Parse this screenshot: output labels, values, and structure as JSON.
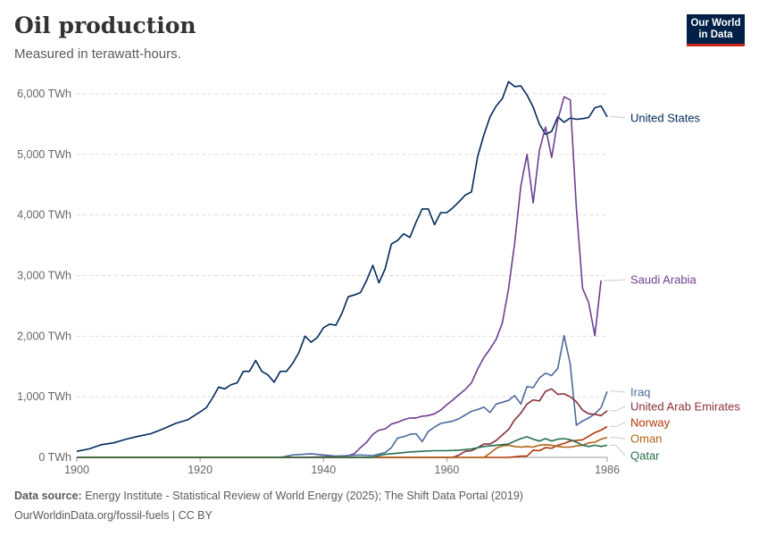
{
  "header": {
    "title": "Oil production",
    "subtitle": "Measured in terawatt-hours.",
    "logo_line1": "Our World",
    "logo_line2": "in Data"
  },
  "footer": {
    "source_label": "Data source:",
    "source_text": "Energy Institute - Statistical Review of World Energy (2025); The Shift Data Portal (2019)",
    "url_text": "OurWorldinData.org/fossil-fuels | CC BY"
  },
  "chart_data": {
    "type": "line",
    "title": "Oil production",
    "subtitle": "Measured in terawatt-hours.",
    "xlabel": "",
    "ylabel": "",
    "xlim": [
      1900,
      1986
    ],
    "ylim": [
      0,
      6000
    ],
    "y_ticks": [
      0,
      1000,
      2000,
      3000,
      4000,
      5000,
      6000
    ],
    "y_tick_labels": [
      "0 TWh",
      "1,000 TWh",
      "2,000 TWh",
      "3,000 TWh",
      "4,000 TWh",
      "5,000 TWh",
      "6,000 TWh"
    ],
    "x_ticks": [
      1900,
      1920,
      1940,
      1960,
      1986
    ],
    "x_tick_labels": [
      "1900",
      "1920",
      "1940",
      "1960",
      "1986"
    ],
    "grid": "horizontal dashed",
    "legend": "labels at right end of lines",
    "series": [
      {
        "name": "United States",
        "color": "#00295b",
        "points": [
          [
            1900,
            100
          ],
          [
            1902,
            140
          ],
          [
            1904,
            210
          ],
          [
            1906,
            240
          ],
          [
            1908,
            300
          ],
          [
            1910,
            350
          ],
          [
            1912,
            390
          ],
          [
            1914,
            470
          ],
          [
            1916,
            560
          ],
          [
            1918,
            620
          ],
          [
            1920,
            750
          ],
          [
            1921,
            820
          ],
          [
            1922,
            980
          ],
          [
            1923,
            1160
          ],
          [
            1924,
            1130
          ],
          [
            1925,
            1200
          ],
          [
            1926,
            1230
          ],
          [
            1927,
            1420
          ],
          [
            1928,
            1420
          ],
          [
            1929,
            1600
          ],
          [
            1930,
            1420
          ],
          [
            1931,
            1360
          ],
          [
            1932,
            1240
          ],
          [
            1933,
            1420
          ],
          [
            1934,
            1420
          ],
          [
            1935,
            1550
          ],
          [
            1936,
            1730
          ],
          [
            1937,
            2000
          ],
          [
            1938,
            1900
          ],
          [
            1939,
            1980
          ],
          [
            1940,
            2140
          ],
          [
            1941,
            2200
          ],
          [
            1942,
            2180
          ],
          [
            1943,
            2380
          ],
          [
            1944,
            2650
          ],
          [
            1945,
            2680
          ],
          [
            1946,
            2720
          ],
          [
            1947,
            2920
          ],
          [
            1948,
            3170
          ],
          [
            1949,
            2880
          ],
          [
            1950,
            3110
          ],
          [
            1951,
            3520
          ],
          [
            1952,
            3580
          ],
          [
            1953,
            3690
          ],
          [
            1954,
            3630
          ],
          [
            1955,
            3880
          ],
          [
            1956,
            4100
          ],
          [
            1957,
            4100
          ],
          [
            1958,
            3840
          ],
          [
            1959,
            4040
          ],
          [
            1960,
            4040
          ],
          [
            1961,
            4120
          ],
          [
            1962,
            4220
          ],
          [
            1963,
            4330
          ],
          [
            1964,
            4380
          ],
          [
            1965,
            4970
          ],
          [
            1966,
            5320
          ],
          [
            1967,
            5620
          ],
          [
            1968,
            5800
          ],
          [
            1969,
            5920
          ],
          [
            1970,
            6200
          ],
          [
            1971,
            6120
          ],
          [
            1972,
            6130
          ],
          [
            1973,
            5980
          ],
          [
            1974,
            5780
          ],
          [
            1975,
            5500
          ],
          [
            1976,
            5330
          ],
          [
            1977,
            5380
          ],
          [
            1978,
            5620
          ],
          [
            1979,
            5530
          ],
          [
            1980,
            5600
          ],
          [
            1981,
            5580
          ],
          [
            1982,
            5590
          ],
          [
            1983,
            5610
          ],
          [
            1984,
            5770
          ],
          [
            1985,
            5800
          ],
          [
            1986,
            5620
          ]
        ]
      },
      {
        "name": "Saudi Arabia",
        "color": "#6d3e91",
        "points": [
          [
            1900,
            0
          ],
          [
            1936,
            0
          ],
          [
            1938,
            5
          ],
          [
            1940,
            10
          ],
          [
            1942,
            15
          ],
          [
            1944,
            30
          ],
          [
            1945,
            60
          ],
          [
            1946,
            160
          ],
          [
            1947,
            250
          ],
          [
            1948,
            380
          ],
          [
            1949,
            450
          ],
          [
            1950,
            470
          ],
          [
            1951,
            550
          ],
          [
            1952,
            580
          ],
          [
            1953,
            620
          ],
          [
            1954,
            650
          ],
          [
            1955,
            650
          ],
          [
            1956,
            680
          ],
          [
            1957,
            690
          ],
          [
            1958,
            720
          ],
          [
            1959,
            780
          ],
          [
            1960,
            870
          ],
          [
            1961,
            950
          ],
          [
            1962,
            1040
          ],
          [
            1963,
            1120
          ],
          [
            1964,
            1230
          ],
          [
            1965,
            1460
          ],
          [
            1966,
            1650
          ],
          [
            1967,
            1790
          ],
          [
            1968,
            1950
          ],
          [
            1969,
            2220
          ],
          [
            1970,
            2780
          ],
          [
            1971,
            3540
          ],
          [
            1972,
            4480
          ],
          [
            1973,
            5000
          ],
          [
            1974,
            4200
          ],
          [
            1975,
            5060
          ],
          [
            1976,
            5450
          ],
          [
            1977,
            4950
          ],
          [
            1978,
            5570
          ],
          [
            1979,
            5950
          ],
          [
            1980,
            5900
          ],
          [
            1981,
            4110
          ],
          [
            1982,
            2790
          ],
          [
            1983,
            2550
          ],
          [
            1984,
            2010
          ],
          [
            1985,
            2920
          ]
        ]
      },
      {
        "name": "Iraq",
        "color": "#4c6a9c",
        "points": [
          [
            1900,
            0
          ],
          [
            1933,
            0
          ],
          [
            1935,
            40
          ],
          [
            1938,
            60
          ],
          [
            1940,
            40
          ],
          [
            1942,
            20
          ],
          [
            1944,
            30
          ],
          [
            1946,
            40
          ],
          [
            1948,
            30
          ],
          [
            1950,
            80
          ],
          [
            1951,
            160
          ],
          [
            1952,
            320
          ],
          [
            1953,
            340
          ],
          [
            1954,
            380
          ],
          [
            1955,
            390
          ],
          [
            1956,
            260
          ],
          [
            1957,
            430
          ],
          [
            1958,
            500
          ],
          [
            1959,
            560
          ],
          [
            1960,
            580
          ],
          [
            1961,
            600
          ],
          [
            1962,
            640
          ],
          [
            1963,
            700
          ],
          [
            1964,
            760
          ],
          [
            1965,
            790
          ],
          [
            1966,
            830
          ],
          [
            1967,
            740
          ],
          [
            1968,
            880
          ],
          [
            1969,
            910
          ],
          [
            1970,
            940
          ],
          [
            1971,
            1020
          ],
          [
            1972,
            880
          ],
          [
            1973,
            1170
          ],
          [
            1974,
            1150
          ],
          [
            1975,
            1310
          ],
          [
            1976,
            1390
          ],
          [
            1977,
            1350
          ],
          [
            1978,
            1470
          ],
          [
            1979,
            2010
          ],
          [
            1980,
            1540
          ],
          [
            1981,
            530
          ],
          [
            1982,
            600
          ],
          [
            1983,
            650
          ],
          [
            1984,
            720
          ],
          [
            1985,
            820
          ],
          [
            1986,
            1090
          ]
        ]
      },
      {
        "name": "United Arab Emirates",
        "color": "#883039",
        "points": [
          [
            1900,
            0
          ],
          [
            1961,
            0
          ],
          [
            1962,
            40
          ],
          [
            1963,
            100
          ],
          [
            1964,
            110
          ],
          [
            1965,
            160
          ],
          [
            1966,
            220
          ],
          [
            1967,
            220
          ],
          [
            1968,
            280
          ],
          [
            1969,
            370
          ],
          [
            1970,
            460
          ],
          [
            1971,
            620
          ],
          [
            1972,
            730
          ],
          [
            1973,
            880
          ],
          [
            1974,
            950
          ],
          [
            1975,
            930
          ],
          [
            1976,
            1090
          ],
          [
            1977,
            1130
          ],
          [
            1978,
            1040
          ],
          [
            1979,
            1050
          ],
          [
            1980,
            1000
          ],
          [
            1981,
            920
          ],
          [
            1982,
            780
          ],
          [
            1983,
            720
          ],
          [
            1984,
            710
          ],
          [
            1985,
            690
          ],
          [
            1986,
            770
          ]
        ]
      },
      {
        "name": "Norway",
        "color": "#b13507",
        "points": [
          [
            1900,
            0
          ],
          [
            1970,
            0
          ],
          [
            1971,
            10
          ],
          [
            1972,
            20
          ],
          [
            1973,
            20
          ],
          [
            1974,
            120
          ],
          [
            1975,
            110
          ],
          [
            1976,
            160
          ],
          [
            1977,
            150
          ],
          [
            1978,
            200
          ],
          [
            1979,
            230
          ],
          [
            1980,
            270
          ],
          [
            1981,
            280
          ],
          [
            1982,
            290
          ],
          [
            1983,
            350
          ],
          [
            1984,
            410
          ],
          [
            1985,
            450
          ],
          [
            1986,
            510
          ]
        ]
      },
      {
        "name": "Oman",
        "color": "#b16214",
        "points": [
          [
            1900,
            0
          ],
          [
            1966,
            0
          ],
          [
            1967,
            70
          ],
          [
            1968,
            150
          ],
          [
            1969,
            190
          ],
          [
            1970,
            200
          ],
          [
            1971,
            180
          ],
          [
            1972,
            170
          ],
          [
            1973,
            180
          ],
          [
            1974,
            170
          ],
          [
            1975,
            200
          ],
          [
            1976,
            210
          ],
          [
            1977,
            200
          ],
          [
            1978,
            180
          ],
          [
            1979,
            170
          ],
          [
            1980,
            170
          ],
          [
            1981,
            190
          ],
          [
            1982,
            200
          ],
          [
            1983,
            240
          ],
          [
            1984,
            250
          ],
          [
            1985,
            300
          ],
          [
            1986,
            330
          ]
        ]
      },
      {
        "name": "Qatar",
        "color": "#286e4b",
        "points": [
          [
            1900,
            0
          ],
          [
            1948,
            0
          ],
          [
            1949,
            30
          ],
          [
            1950,
            50
          ],
          [
            1952,
            70
          ],
          [
            1954,
            90
          ],
          [
            1956,
            100
          ],
          [
            1958,
            110
          ],
          [
            1960,
            110
          ],
          [
            1962,
            120
          ],
          [
            1964,
            140
          ],
          [
            1966,
            180
          ],
          [
            1968,
            200
          ],
          [
            1970,
            220
          ],
          [
            1971,
            270
          ],
          [
            1972,
            310
          ],
          [
            1973,
            340
          ],
          [
            1974,
            300
          ],
          [
            1975,
            270
          ],
          [
            1976,
            310
          ],
          [
            1977,
            270
          ],
          [
            1978,
            300
          ],
          [
            1979,
            310
          ],
          [
            1980,
            290
          ],
          [
            1981,
            250
          ],
          [
            1982,
            200
          ],
          [
            1983,
            180
          ],
          [
            1984,
            200
          ],
          [
            1985,
            180
          ],
          [
            1986,
            200
          ]
        ]
      }
    ]
  }
}
